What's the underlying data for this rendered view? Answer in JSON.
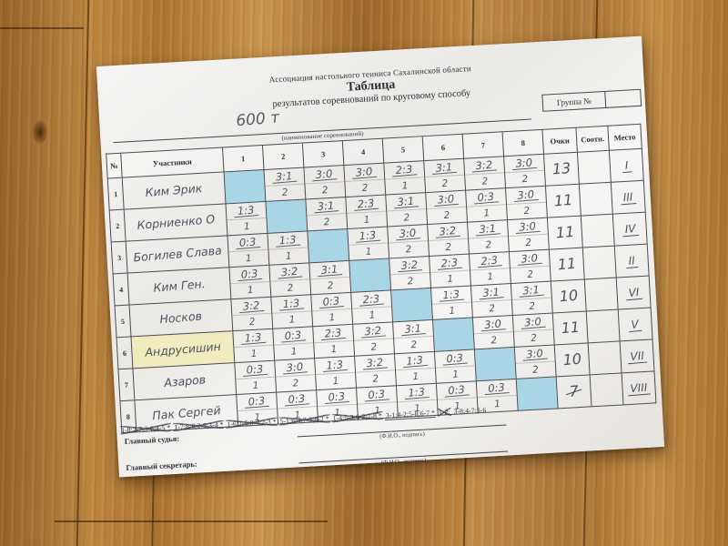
{
  "header": {
    "association": "Ассоциация настольного тенниса Сахалинской области",
    "title": "Таблица",
    "subtitle": "результатов соревнований по круговому способу",
    "competition_name": "600 т",
    "name_caption": "(наименование соревнований)",
    "group_label": "Группа №",
    "group_value": ""
  },
  "table": {
    "columns": [
      "№",
      "Участники",
      "1",
      "2",
      "3",
      "4",
      "5",
      "6",
      "7",
      "8",
      "Очки",
      "Соотн.",
      "Место"
    ],
    "rows": [
      {
        "num": "1",
        "name": "Ким Эрик",
        "highlight": false,
        "cells": [
          null,
          {
            "s": "3:1",
            "p": "2"
          },
          {
            "s": "3:0",
            "p": "2"
          },
          {
            "s": "3:0",
            "p": "2"
          },
          {
            "s": "2:3",
            "p": "1"
          },
          {
            "s": "3:1",
            "p": "2"
          },
          {
            "s": "3:2",
            "p": "2"
          },
          {
            "s": "3:0",
            "p": "2"
          }
        ],
        "points": "13",
        "struck": false,
        "ratio": "",
        "place": "I"
      },
      {
        "num": "2",
        "name": "Корниенко О",
        "highlight": false,
        "cells": [
          {
            "s": "1:3",
            "p": "1"
          },
          null,
          {
            "s": "3:1",
            "p": "2"
          },
          {
            "s": "2:3",
            "p": "1"
          },
          {
            "s": "3:1",
            "p": "2"
          },
          {
            "s": "3:0",
            "p": "2"
          },
          {
            "s": "0:3",
            "p": "1"
          },
          {
            "s": "3:0",
            "p": "2"
          }
        ],
        "points": "11",
        "struck": false,
        "ratio": "",
        "place": "III"
      },
      {
        "num": "3",
        "name": "Богилев Слава",
        "highlight": false,
        "cells": [
          {
            "s": "0:3",
            "p": "1"
          },
          {
            "s": "1:3",
            "p": "1"
          },
          null,
          {
            "s": "1:3",
            "p": "1"
          },
          {
            "s": "3:0",
            "p": "2"
          },
          {
            "s": "3:2",
            "p": "2"
          },
          {
            "s": "3:1",
            "p": "2"
          },
          {
            "s": "3:0",
            "p": "2"
          }
        ],
        "points": "11",
        "struck": false,
        "ratio": "",
        "place": "IV"
      },
      {
        "num": "4",
        "name": "Ким Ген.",
        "highlight": false,
        "cells": [
          {
            "s": "0:3",
            "p": "1"
          },
          {
            "s": "3:2",
            "p": "2"
          },
          {
            "s": "3:1",
            "p": "2"
          },
          null,
          {
            "s": "3:2",
            "p": "2"
          },
          {
            "s": "2:3",
            "p": "1"
          },
          {
            "s": "2:3",
            "p": "1"
          },
          {
            "s": "3:0",
            "p": "2"
          }
        ],
        "points": "11",
        "struck": false,
        "ratio": "",
        "place": "II"
      },
      {
        "num": "5",
        "name": "Носков",
        "highlight": false,
        "cells": [
          {
            "s": "3:2",
            "p": "2"
          },
          {
            "s": "1:3",
            "p": "1"
          },
          {
            "s": "0:3",
            "p": "1"
          },
          {
            "s": "2:3",
            "p": "1"
          },
          null,
          {
            "s": "1:3",
            "p": "1"
          },
          {
            "s": "3:1",
            "p": "2"
          },
          {
            "s": "3:1",
            "p": "2"
          }
        ],
        "points": "10",
        "struck": false,
        "ratio": "",
        "place": "VI"
      },
      {
        "num": "6",
        "name": "Андрусишин",
        "highlight": true,
        "cells": [
          {
            "s": "1:3",
            "p": "1"
          },
          {
            "s": "0:3",
            "p": "1"
          },
          {
            "s": "2:3",
            "p": "1"
          },
          {
            "s": "3:2",
            "p": "2"
          },
          {
            "s": "3:1",
            "p": "2"
          },
          null,
          {
            "s": "3:0",
            "p": "2"
          },
          {
            "s": "3:0",
            "p": "2"
          }
        ],
        "points": "11",
        "struck": false,
        "ratio": "",
        "place": "V"
      },
      {
        "num": "7",
        "name": "Азаров",
        "highlight": false,
        "cells": [
          {
            "s": "0:3",
            "p": "1"
          },
          {
            "s": "3:0",
            "p": "2"
          },
          {
            "s": "1:3",
            "p": "1"
          },
          {
            "s": "3:2",
            "p": "2"
          },
          {
            "s": "1:3",
            "p": "1"
          },
          {
            "s": "0:3",
            "p": "1"
          },
          null,
          {
            "s": "3:0",
            "p": "2"
          }
        ],
        "points": "10",
        "struck": false,
        "ratio": "",
        "place": "VII"
      },
      {
        "num": "8",
        "name": "Пак Сергей",
        "highlight": false,
        "cells": [
          {
            "s": "0:3",
            "p": "1"
          },
          {
            "s": "0:3",
            "p": "1"
          },
          {
            "s": "0:3",
            "p": "1"
          },
          {
            "s": "0:3",
            "p": "1"
          },
          {
            "s": "1:3",
            "p": "1"
          },
          {
            "s": "0:3",
            "p": "1"
          },
          {
            "s": "0:3",
            "p": "1"
          },
          null
        ],
        "points": "7",
        "struck": true,
        "ratio": "",
        "place": "VIII"
      }
    ]
  },
  "schedule": [
    {
      "text": "1-8;2-7;3-6;4-5 *",
      "state": "crossed"
    },
    {
      "text": "1-7;8-6;2-5;3-4 *",
      "state": "crossed"
    },
    {
      "text": "1-6;7-5;8-4;2-3 *",
      "state": "crossed"
    },
    {
      "text": "5-1;6-4;7-3;8-2 *",
      "state": "crossed"
    },
    {
      "text": "1-4;5-3;6-2;7-8 *",
      "state": "crossed"
    },
    {
      "text": "3-1;4-2;5-8;6-7 *",
      "state": "underlined"
    },
    {
      "text": "1-2;",
      "state": "crossed"
    },
    {
      "text": "3-8;4-7;5-6",
      "state": "plain"
    }
  ],
  "footer": {
    "judge_label": "Главный судья:",
    "secretary_label": "Главный секретарь:",
    "sign_caption": "(Ф.И.О., подпись)"
  },
  "colors": {
    "diagonal_cell": "#a9d6e6",
    "name_highlight": "#f1ecc0",
    "ink": "#4d525e",
    "wood_base": "#b57a33"
  }
}
